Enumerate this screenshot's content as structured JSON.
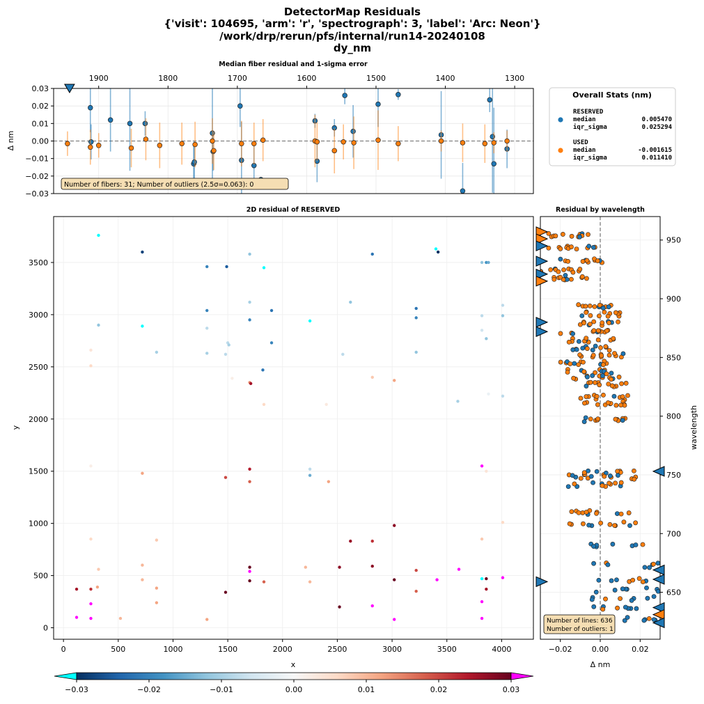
{
  "title_lines": [
    "DetectorMap Residuals",
    "{'visit': 104695, 'arm': 'r', 'spectrograph': 3, 'label': 'Arc: Neon'}",
    "/work/drp/rerun/pfs/internal/run14-20240108",
    "dy_nm"
  ],
  "colors": {
    "reserved": "#1f77b4",
    "used": "#ff7f0e",
    "under": "#00ffff",
    "over": "#ff00ff"
  },
  "chart_data": [
    {
      "id": "median-fiber",
      "type": "scatter",
      "title": "Median fiber residual and 1-sigma error",
      "ylabel": "Δ nm",
      "xlabel_top": "",
      "xlim": [
        1965,
        1273
      ],
      "ylim": [
        -0.03,
        0.03
      ],
      "xticks": [
        1900,
        1800,
        1700,
        1600,
        1500,
        1400,
        1300
      ],
      "yticks": [
        -0.03,
        -0.02,
        -0.01,
        0.0,
        0.01,
        0.02,
        0.03
      ],
      "ytick_labels": [
        "−0.03",
        "−0.02",
        "−0.01",
        "0.00",
        "0.01",
        "0.02",
        "0.03"
      ],
      "annotation": "Number of fibers: 31; Number of outliers (2.5σ=0.063): 0",
      "series": [
        {
          "name": "RESERVED",
          "x": [
            1942,
            1912,
            1911,
            1883,
            1855,
            1833,
            1763,
            1762,
            1736,
            1735,
            1696,
            1694,
            1676,
            1666,
            1588,
            1585,
            1560,
            1545,
            1533,
            1497,
            1468,
            1406,
            1375,
            1336,
            1332,
            1330,
            1311
          ],
          "y": [
            0.0295,
            0.019,
            -0.0005,
            0.012,
            0.01,
            0.01,
            -0.013,
            -0.012,
            0.0045,
            -0.006,
            0.02,
            -0.011,
            -0.014,
            -0.022,
            0.0115,
            -0.0115,
            0.0075,
            0.026,
            0.0055,
            0.021,
            0.0265,
            0.0035,
            -0.0285,
            0.0235,
            0.0025,
            -0.013,
            -0.0045
          ],
          "err": [
            0.0,
            0.014,
            0.01,
            0.018,
            0.027,
            0.007,
            0.011,
            0.012,
            0.031,
            0.011,
            0.012,
            0.022,
            0.011,
            0.0,
            0.004,
            0.012,
            0.005,
            0.005,
            0.015,
            0.013,
            0.003,
            0.025,
            0.016,
            0.007,
            0.032,
            0.032,
            0.011
          ]
        },
        {
          "name": "USED",
          "x": [
            1945,
            1912,
            1900,
            1853,
            1832,
            1812,
            1780,
            1761,
            1736,
            1734,
            1694,
            1676,
            1663,
            1588,
            1585,
            1560,
            1547,
            1532,
            1497,
            1468,
            1406,
            1375,
            1343,
            1330,
            1311
          ],
          "y": [
            -0.0015,
            -0.0035,
            -0.0025,
            -0.004,
            0.001,
            -0.0025,
            -0.0015,
            -0.002,
            0.0,
            -0.0055,
            -0.0015,
            -0.0015,
            0.0005,
            0.0,
            -0.0005,
            -0.0055,
            -0.0005,
            -0.001,
            0.0005,
            -0.0015,
            0.0,
            -0.001,
            -0.0015,
            -0.001,
            0.0
          ],
          "err": [
            0.007,
            0.01,
            0.007,
            0.011,
            0.012,
            0.013,
            0.012,
            0.013,
            0.013,
            0.011,
            0.013,
            0.012,
            0.012,
            0.015,
            0.011,
            0.013,
            0.01,
            0.015,
            0.017,
            0.01,
            0.006,
            0.011,
            0.011,
            0.006,
            0.006
          ]
        }
      ]
    },
    {
      "id": "residual-2d",
      "type": "scatter",
      "title": "2D residual of RESERVED",
      "xlabel": "x",
      "ylabel": "y",
      "xlim": [
        -90,
        4290
      ],
      "ylim": [
        -110,
        3940
      ],
      "xticks": [
        0,
        500,
        1000,
        1500,
        2000,
        2500,
        3000,
        3500,
        4000
      ],
      "yticks": [
        0,
        500,
        1000,
        1500,
        2000,
        2500,
        3000,
        3500
      ],
      "points": [
        [
          320,
          3760,
          -0.035
        ],
        [
          720,
          3600,
          -0.028
        ],
        [
          1310,
          3460,
          -0.02
        ],
        [
          1490,
          3460,
          -0.025
        ],
        [
          1700,
          3580,
          -0.012
        ],
        [
          1830,
          3450,
          -0.035
        ],
        [
          2820,
          3580,
          -0.022
        ],
        [
          3400,
          3630,
          -0.035
        ],
        [
          3420,
          3600,
          -0.03
        ],
        [
          3820,
          3500,
          -0.012
        ],
        [
          3860,
          3500,
          -0.018
        ],
        [
          3880,
          3500,
          -0.015
        ],
        [
          320,
          2900,
          -0.012
        ],
        [
          720,
          2890,
          -0.035
        ],
        [
          850,
          2640,
          -0.01
        ],
        [
          1310,
          3040,
          -0.02
        ],
        [
          1310,
          2870,
          -0.008
        ],
        [
          1310,
          2630,
          -0.01
        ],
        [
          1480,
          2620,
          -0.008
        ],
        [
          1500,
          2730,
          -0.008
        ],
        [
          1510,
          2710,
          -0.01
        ],
        [
          1700,
          3120,
          -0.01
        ],
        [
          1700,
          2950,
          -0.02
        ],
        [
          1900,
          3040,
          -0.022
        ],
        [
          1900,
          2730,
          -0.02
        ],
        [
          1820,
          2470,
          -0.022
        ],
        [
          2250,
          2940,
          -0.035
        ],
        [
          2550,
          2620,
          -0.008
        ],
        [
          2620,
          3120,
          -0.012
        ],
        [
          3220,
          3060,
          -0.022
        ],
        [
          3220,
          2970,
          -0.02
        ],
        [
          3220,
          2640,
          -0.012
        ],
        [
          3820,
          2990,
          -0.008
        ],
        [
          3820,
          2850,
          -0.006
        ],
        [
          3860,
          2770,
          -0.012
        ],
        [
          4010,
          3090,
          -0.008
        ],
        [
          4010,
          2990,
          -0.012
        ],
        [
          3600,
          2170,
          -0.01
        ],
        [
          4010,
          2220,
          -0.008
        ],
        [
          3880,
          2240,
          -0.002
        ],
        [
          250,
          2660,
          0.004
        ],
        [
          250,
          2510,
          0.006
        ],
        [
          1700,
          2350,
          0.014
        ],
        [
          1710,
          2340,
          0.025
        ],
        [
          1830,
          2140,
          0.006
        ],
        [
          2820,
          2400,
          0.008
        ],
        [
          3020,
          2370,
          0.012
        ],
        [
          2400,
          2140,
          0.003
        ],
        [
          1540,
          2390,
          0.002
        ],
        [
          250,
          1550,
          0.002
        ],
        [
          720,
          1480,
          0.012
        ],
        [
          1480,
          1440,
          0.02
        ],
        [
          1700,
          1520,
          0.024
        ],
        [
          1700,
          1400,
          0.018
        ],
        [
          2250,
          1520,
          -0.008
        ],
        [
          2250,
          1460,
          -0.015
        ],
        [
          2420,
          1400,
          0.012
        ],
        [
          3820,
          1550,
          0.035
        ],
        [
          3860,
          1500,
          0.004
        ],
        [
          250,
          850,
          0.006
        ],
        [
          850,
          840,
          0.008
        ],
        [
          3020,
          980,
          0.027
        ],
        [
          2620,
          830,
          0.026
        ],
        [
          2820,
          830,
          0.022
        ],
        [
          3820,
          850,
          0.008
        ],
        [
          4010,
          1010,
          0.006
        ],
        [
          120,
          370,
          0.025
        ],
        [
          250,
          370,
          0.022
        ],
        [
          310,
          390,
          0.012
        ],
        [
          320,
          560,
          0.008
        ],
        [
          720,
          600,
          0.01
        ],
        [
          720,
          460,
          0.01
        ],
        [
          850,
          380,
          0.012
        ],
        [
          850,
          240,
          0.012
        ],
        [
          1700,
          580,
          0.03
        ],
        [
          1700,
          540,
          0.035
        ],
        [
          1700,
          450,
          0.03
        ],
        [
          1830,
          440,
          0.018
        ],
        [
          2210,
          580,
          0.01
        ],
        [
          2250,
          440,
          0.01
        ],
        [
          2520,
          580,
          0.027
        ],
        [
          2820,
          590,
          0.027
        ],
        [
          3020,
          460,
          0.03
        ],
        [
          3220,
          550,
          0.02
        ],
        [
          3220,
          350,
          0.018
        ],
        [
          3410,
          460,
          0.035
        ],
        [
          3610,
          560,
          0.035
        ],
        [
          3820,
          470,
          -0.035
        ],
        [
          3860,
          470,
          0.03
        ],
        [
          3860,
          370,
          0.025
        ],
        [
          4010,
          480,
          0.035
        ],
        [
          3820,
          250,
          0.035
        ],
        [
          3820,
          90,
          0.035
        ],
        [
          250,
          230,
          0.035
        ],
        [
          1480,
          340,
          0.03
        ],
        [
          120,
          100,
          0.035
        ],
        [
          250,
          90,
          0.035
        ],
        [
          520,
          90,
          0.01
        ],
        [
          1310,
          80,
          0.012
        ],
        [
          2520,
          200,
          0.03
        ],
        [
          2820,
          210,
          0.035
        ],
        [
          3020,
          80,
          0.035
        ]
      ]
    },
    {
      "id": "residual-wavelength",
      "type": "scatter",
      "title": "Residual by  wavelength",
      "xlabel": "Δ nm",
      "ylabel": "wavelength",
      "xlim": [
        -0.03,
        0.03
      ],
      "ylim": [
        610,
        970
      ],
      "xticks": [
        -0.02,
        0.0,
        0.02
      ],
      "xtick_labels": [
        "−0.02",
        "0.00",
        "0.02"
      ],
      "yticks": [
        650,
        700,
        750,
        800,
        850,
        900,
        950
      ],
      "annotation_lines": [
        "Number of lines: 636",
        "Number of outliers: 1"
      ],
      "row_centers": [
        954,
        944,
        932,
        924,
        918,
        894,
        887,
        879,
        872,
        865,
        858,
        852,
        845,
        838,
        833,
        827,
        816,
        811,
        797,
        752,
        748,
        742,
        718,
        708,
        690,
        673,
        660,
        652,
        645,
        636,
        627
      ]
    }
  ],
  "stats": {
    "title": "Overall Stats (nm)",
    "groups": [
      {
        "name": "RESERVED",
        "rows": [
          {
            "label": "median",
            "value": "0.005470"
          },
          {
            "label": "iqr_sigma",
            "value": "0.025294"
          }
        ]
      },
      {
        "name": "USED",
        "rows": [
          {
            "label": "median",
            "value": "-0.001615"
          },
          {
            "label": "iqr_sigma",
            "value": "0.011410"
          }
        ]
      }
    ]
  },
  "colorbar": {
    "min": -0.03,
    "max": 0.03,
    "ticks": [
      -0.03,
      -0.02,
      -0.01,
      0.0,
      0.01,
      0.02,
      0.03
    ],
    "tick_labels": [
      "−0.03",
      "−0.02",
      "−0.01",
      "0.00",
      "0.01",
      "0.02",
      "0.03"
    ]
  }
}
